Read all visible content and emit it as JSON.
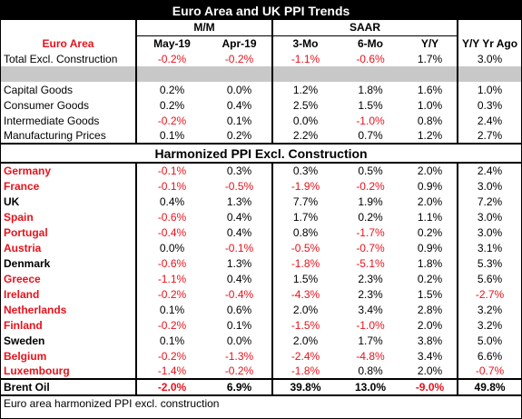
{
  "title": "Euro Area and UK PPI Trends",
  "groups": {
    "mm": "M/M",
    "saar": "SAAR"
  },
  "columns": {
    "label": "Euro Area",
    "c1": "May-19",
    "c2": "Apr-19",
    "c3": "3-Mo",
    "c4": "6-Mo",
    "c5": "Y/Y",
    "c6": "Y/Y Yr Ago"
  },
  "euro_rows": [
    {
      "label": "Total Excl. Construction",
      "v": [
        "-0.2%",
        "-0.2%",
        "-1.1%",
        "-0.6%",
        "1.7%",
        "3.0%"
      ]
    }
  ],
  "goods_rows": [
    {
      "label": "Capital Goods",
      "v": [
        "0.2%",
        "0.0%",
        "1.2%",
        "1.8%",
        "1.6%",
        "1.0%"
      ]
    },
    {
      "label": "Consumer Goods",
      "v": [
        "0.2%",
        "0.4%",
        "2.5%",
        "1.5%",
        "1.0%",
        "0.3%"
      ]
    },
    {
      "label": "Intermediate Goods",
      "v": [
        "-0.2%",
        "0.1%",
        "0.0%",
        "-1.0%",
        "0.8%",
        "2.4%"
      ]
    },
    {
      "label": "Manufacturing Prices",
      "v": [
        "0.1%",
        "0.2%",
        "2.2%",
        "0.7%",
        "1.2%",
        "2.7%"
      ]
    }
  ],
  "section_title": "Harmonized PPI Excl. Construction",
  "country_rows": [
    {
      "label": "Germany",
      "euro": true,
      "v": [
        "-0.1%",
        "0.3%",
        "0.3%",
        "0.5%",
        "2.0%",
        "2.4%"
      ]
    },
    {
      "label": "France",
      "euro": true,
      "v": [
        "-0.1%",
        "-0.5%",
        "-1.9%",
        "-0.2%",
        "0.9%",
        "3.0%"
      ]
    },
    {
      "label": "UK",
      "euro": false,
      "v": [
        "0.4%",
        "1.3%",
        "7.7%",
        "1.9%",
        "2.0%",
        "7.2%"
      ]
    },
    {
      "label": "Spain",
      "euro": true,
      "v": [
        "-0.6%",
        "0.4%",
        "1.7%",
        "0.2%",
        "1.1%",
        "3.0%"
      ]
    },
    {
      "label": "Portugal",
      "euro": true,
      "v": [
        "-0.4%",
        "0.4%",
        "0.8%",
        "-1.7%",
        "0.2%",
        "3.0%"
      ]
    },
    {
      "label": "Austria",
      "euro": true,
      "v": [
        "0.0%",
        "-0.1%",
        "-0.5%",
        "-0.7%",
        "0.9%",
        "3.1%"
      ]
    },
    {
      "label": "Denmark",
      "euro": false,
      "v": [
        "-0.6%",
        "1.3%",
        "-1.8%",
        "-5.1%",
        "1.8%",
        "5.3%"
      ]
    },
    {
      "label": "Greece",
      "euro": true,
      "v": [
        "-1.1%",
        "0.4%",
        "1.5%",
        "2.3%",
        "0.2%",
        "5.6%"
      ]
    },
    {
      "label": "Ireland",
      "euro": true,
      "v": [
        "-0.2%",
        "-0.4%",
        "-4.3%",
        "2.3%",
        "1.5%",
        "-2.7%"
      ]
    },
    {
      "label": "Netherlands",
      "euro": true,
      "v": [
        "0.1%",
        "0.6%",
        "2.0%",
        "3.4%",
        "2.8%",
        "3.2%"
      ]
    },
    {
      "label": "Finland",
      "euro": true,
      "v": [
        "-0.2%",
        "0.1%",
        "-1.5%",
        "-1.0%",
        "2.0%",
        "3.2%"
      ]
    },
    {
      "label": "Sweden",
      "euro": false,
      "v": [
        "0.1%",
        "0.0%",
        "2.0%",
        "1.7%",
        "3.8%",
        "5.0%"
      ]
    },
    {
      "label": "Belgium",
      "euro": true,
      "v": [
        "-0.2%",
        "-1.3%",
        "-2.4%",
        "-4.8%",
        "3.4%",
        "6.6%"
      ]
    },
    {
      "label": "Luxembourg",
      "euro": true,
      "v": [
        "-1.4%",
        "-0.2%",
        "-1.8%",
        "0.8%",
        "2.0%",
        "-0.7%"
      ]
    }
  ],
  "oil_row": {
    "label": "Brent Oil",
    "v": [
      "-2.0%",
      "6.9%",
      "39.8%",
      "13.0%",
      "-9.0%",
      "49.8%"
    ]
  },
  "footnote": "Euro area harmonized PPI excl. construction",
  "colors": {
    "negative": "#e8121b",
    "euro_label": "#e8121b",
    "banner_bg": "#000000",
    "separator": "#c8c8c8"
  }
}
